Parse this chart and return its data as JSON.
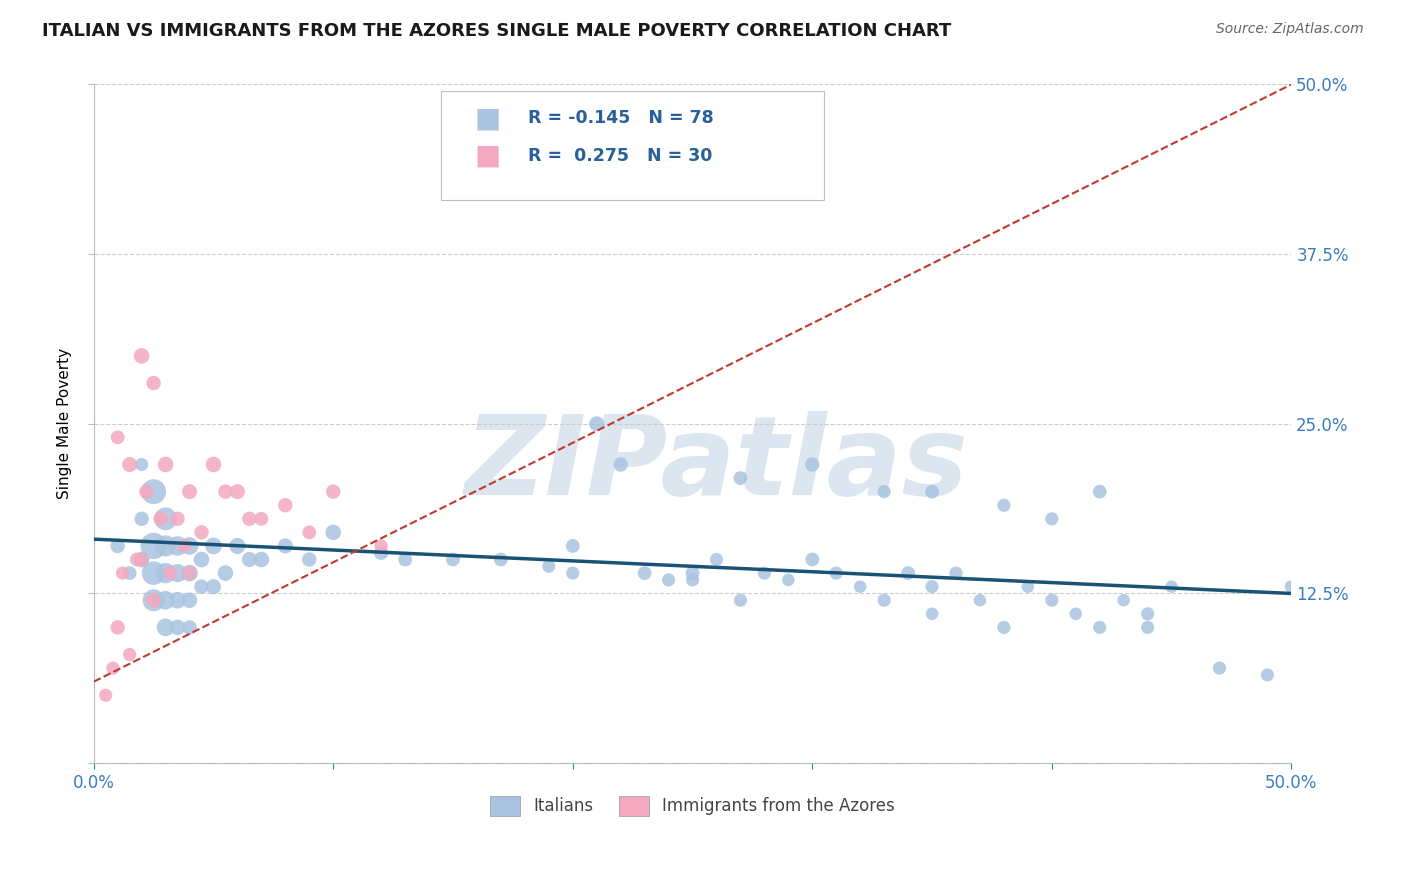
{
  "title": "ITALIAN VS IMMIGRANTS FROM THE AZORES SINGLE MALE POVERTY CORRELATION CHART",
  "source": "Source: ZipAtlas.com",
  "ylabel": "Single Male Poverty",
  "legend_italians": "Italians",
  "legend_azores": "Immigrants from the Azores",
  "R_italians": -0.145,
  "N_italians": 78,
  "R_azores": 0.275,
  "N_azores": 30,
  "color_italians": "#a8c4e0",
  "color_italians_line": "#1a5276",
  "color_azores": "#f4a8c0",
  "color_azores_line": "#c0392b",
  "color_grid": "#cccccc",
  "color_watermark": "#dce6f0",
  "watermark_text": "ZIPatlas",
  "xlim": [
    0.0,
    0.5
  ],
  "ylim": [
    0.0,
    0.5
  ],
  "yticks": [
    0.0,
    0.125,
    0.25,
    0.375,
    0.5
  ],
  "ytick_labels": [
    "",
    "12.5%",
    "25.0%",
    "37.5%",
    "50.0%"
  ],
  "italians_x": [
    0.01,
    0.015,
    0.02,
    0.02,
    0.02,
    0.025,
    0.025,
    0.025,
    0.025,
    0.03,
    0.03,
    0.03,
    0.03,
    0.03,
    0.035,
    0.035,
    0.035,
    0.035,
    0.04,
    0.04,
    0.04,
    0.04,
    0.045,
    0.045,
    0.05,
    0.05,
    0.055,
    0.06,
    0.065,
    0.07,
    0.08,
    0.09,
    0.1,
    0.12,
    0.13,
    0.15,
    0.17,
    0.19,
    0.2,
    0.21,
    0.22,
    0.23,
    0.24,
    0.25,
    0.26,
    0.27,
    0.28,
    0.29,
    0.3,
    0.31,
    0.32,
    0.33,
    0.34,
    0.35,
    0.35,
    0.36,
    0.37,
    0.38,
    0.39,
    0.4,
    0.41,
    0.42,
    0.43,
    0.44,
    0.45,
    0.27,
    0.3,
    0.35,
    0.38,
    0.42,
    0.44,
    0.47,
    0.49,
    0.5,
    0.2,
    0.25,
    0.33,
    0.4
  ],
  "italians_y": [
    0.16,
    0.14,
    0.18,
    0.15,
    0.22,
    0.2,
    0.16,
    0.14,
    0.12,
    0.18,
    0.16,
    0.14,
    0.12,
    0.1,
    0.16,
    0.14,
    0.12,
    0.1,
    0.16,
    0.14,
    0.12,
    0.1,
    0.15,
    0.13,
    0.16,
    0.13,
    0.14,
    0.16,
    0.15,
    0.15,
    0.16,
    0.15,
    0.17,
    0.155,
    0.15,
    0.15,
    0.15,
    0.145,
    0.16,
    0.25,
    0.22,
    0.14,
    0.135,
    0.14,
    0.15,
    0.12,
    0.14,
    0.135,
    0.15,
    0.14,
    0.13,
    0.12,
    0.14,
    0.13,
    0.11,
    0.14,
    0.12,
    0.1,
    0.13,
    0.12,
    0.11,
    0.1,
    0.12,
    0.11,
    0.13,
    0.21,
    0.22,
    0.2,
    0.19,
    0.2,
    0.1,
    0.07,
    0.065,
    0.13,
    0.14,
    0.135,
    0.2,
    0.18
  ],
  "italians_size": [
    60,
    55,
    60,
    70,
    50,
    180,
    200,
    160,
    140,
    150,
    130,
    120,
    100,
    90,
    110,
    95,
    80,
    70,
    90,
    80,
    70,
    60,
    70,
    60,
    80,
    65,
    70,
    75,
    65,
    70,
    65,
    60,
    70,
    60,
    55,
    55,
    55,
    50,
    55,
    65,
    60,
    55,
    50,
    55,
    50,
    50,
    50,
    45,
    55,
    50,
    45,
    50,
    55,
    50,
    45,
    50,
    45,
    50,
    45,
    50,
    45,
    50,
    45,
    50,
    45,
    55,
    60,
    55,
    50,
    55,
    50,
    50,
    50,
    50,
    50,
    50,
    50,
    50
  ],
  "azores_x": [
    0.005,
    0.008,
    0.01,
    0.01,
    0.012,
    0.015,
    0.015,
    0.018,
    0.02,
    0.02,
    0.022,
    0.025,
    0.025,
    0.028,
    0.03,
    0.032,
    0.035,
    0.038,
    0.04,
    0.04,
    0.045,
    0.05,
    0.055,
    0.06,
    0.065,
    0.07,
    0.08,
    0.09,
    0.1,
    0.12
  ],
  "azores_y": [
    0.05,
    0.07,
    0.24,
    0.1,
    0.14,
    0.22,
    0.08,
    0.15,
    0.3,
    0.15,
    0.2,
    0.28,
    0.12,
    0.18,
    0.22,
    0.14,
    0.18,
    0.16,
    0.2,
    0.14,
    0.17,
    0.22,
    0.2,
    0.2,
    0.18,
    0.18,
    0.19,
    0.17,
    0.2,
    0.16
  ],
  "azores_size": [
    50,
    50,
    55,
    60,
    50,
    65,
    50,
    55,
    70,
    55,
    60,
    60,
    65,
    60,
    70,
    55,
    60,
    55,
    65,
    55,
    60,
    70,
    60,
    65,
    60,
    55,
    60,
    55,
    60,
    50
  ],
  "italian_line_x": [
    0.0,
    0.5
  ],
  "italian_line_y": [
    0.165,
    0.125
  ],
  "azores_line_x": [
    0.0,
    0.5
  ],
  "azores_line_y": [
    0.06,
    0.5
  ]
}
